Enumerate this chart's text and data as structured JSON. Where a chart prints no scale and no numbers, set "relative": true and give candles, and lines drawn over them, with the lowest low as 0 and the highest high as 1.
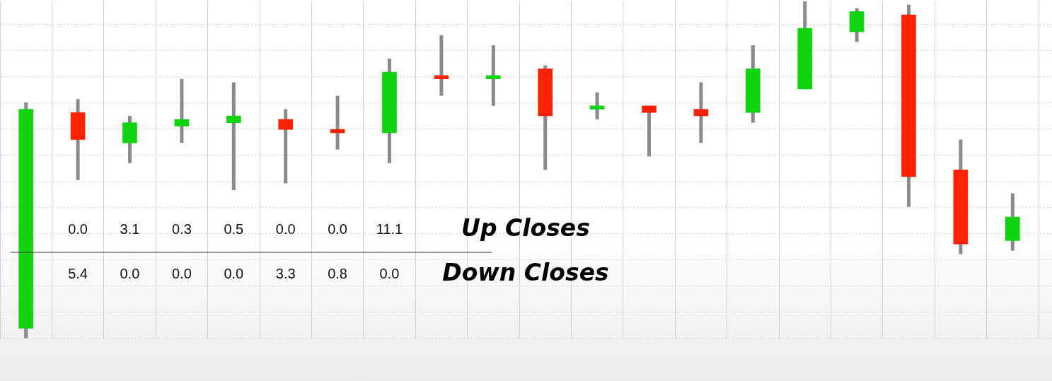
{
  "chart_data": {
    "type": "candlestick",
    "relative": true,
    "grid": true,
    "categories": [
      null,
      null,
      null,
      null,
      null,
      null,
      null,
      null,
      null,
      null,
      null,
      null,
      null,
      null,
      null,
      null,
      null,
      null,
      null,
      null
    ],
    "ohlc": [
      [
        0.03,
        0.7,
        0,
        0.68
      ],
      [
        0.67,
        0.71,
        0.47,
        0.59
      ],
      [
        0.58,
        0.66,
        0.52,
        0.64
      ],
      [
        0.63,
        0.77,
        0.58,
        0.65
      ],
      [
        0.64,
        0.76,
        0.44,
        0.66
      ],
      [
        0.65,
        0.68,
        0.46,
        0.62
      ],
      [
        0.62,
        0.72,
        0.56,
        0.61
      ],
      [
        0.61,
        0.83,
        0.52,
        0.79
      ],
      [
        0.78,
        0.9,
        0.72,
        0.77
      ],
      [
        0.77,
        0.87,
        0.69,
        0.78
      ],
      [
        0.8,
        0.81,
        0.5,
        0.66
      ],
      [
        0.68,
        0.73,
        0.65,
        0.69
      ],
      [
        0.69,
        0.69,
        0.54,
        0.67
      ],
      [
        0.68,
        0.76,
        0.58,
        0.66
      ],
      [
        0.67,
        0.87,
        0.64,
        0.8
      ],
      [
        0.74,
        1,
        0.74,
        0.92
      ],
      [
        0.91,
        0.98,
        0.88,
        0.97
      ],
      [
        0.96,
        0.99,
        0.39,
        0.48
      ],
      [
        0.5,
        0.59,
        0.25,
        0.28
      ],
      [
        0.29,
        0.43,
        0.26,
        0.36
      ]
    ],
    "colors": [
      "#11d411",
      "#ff2200",
      "#11d411",
      "#11d411",
      "#11d411",
      "#ff2200",
      "#ff2200",
      "#11d411",
      "#ff2200",
      "#11d411",
      "#ff2200",
      "#11d411",
      "#ff2200",
      "#ff2200",
      "#11d411",
      "#11d411",
      "#11d411",
      "#ff2200",
      "#ff2200",
      "#11d411"
    ],
    "annotations": [
      "Up Closes",
      "0.0",
      "3.1",
      "0.3",
      "0.5",
      "0.0",
      "0.0",
      "11.1",
      "Down Closes",
      "5.4",
      "0.0",
      "0.0",
      "0.0",
      "3.3",
      "0.8",
      "0.0"
    ]
  }
}
